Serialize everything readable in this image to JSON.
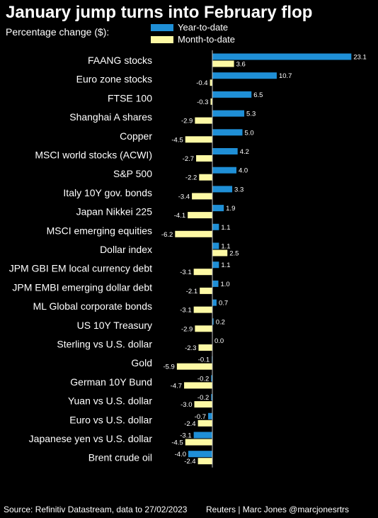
{
  "title": "January jump turns into February flop",
  "subtitle": "Percentage change ($):",
  "colors": {
    "background": "#000000",
    "ytd": "#1f8fd6",
    "mtd": "#fdf9a4",
    "text": "#ffffff"
  },
  "footer": {
    "source": "Source: Refinitiv Datastream, data to 27/02/2023",
    "credit": "Reuters | Marc Jones @marcjonesrtrs"
  },
  "chart_data": {
    "type": "bar",
    "orientation": "horizontal",
    "title": "January jump turns into February flop",
    "subtitle": "Percentage change ($):",
    "legend_position": "top",
    "grid": false,
    "xlim": [
      -7,
      23.1
    ],
    "categories": [
      "FAANG stocks",
      "Euro zone stocks",
      "FTSE 100",
      "Shanghai A shares",
      "Copper",
      "MSCI world stocks (ACWI)",
      "S&P 500",
      "Italy 10Y gov. bonds",
      "Japan Nikkei 225",
      "MSCI emerging equities",
      "Dollar index",
      "JPM GBI EM local currency debt",
      "JPM EMBI emerging dollar debt",
      "ML Global corporate bonds",
      "US 10Y Treasury",
      "Sterling vs U.S. dollar",
      "Gold",
      "German 10Y Bund",
      "Yuan vs U.S. dollar",
      "Euro vs U.S. dollar",
      "Japanese yen vs U.S. dollar",
      "Brent crude oil"
    ],
    "series": [
      {
        "name": "Year-to-date",
        "color": "#1f8fd6",
        "values": [
          23.1,
          10.7,
          6.5,
          5.3,
          5.0,
          4.2,
          4.0,
          3.3,
          1.9,
          1.1,
          1.1,
          1.1,
          1.0,
          0.7,
          0.2,
          0.0,
          -0.1,
          -0.2,
          -0.2,
          -0.7,
          -3.1,
          -4.0
        ],
        "labels": [
          "23.1",
          "10.7",
          "6.5",
          "5.3",
          "5.0",
          "4.2",
          "4.0",
          "3.3",
          "1.9",
          "1.1",
          "1.1",
          "1.1",
          "1.0",
          "0.7",
          "0.2",
          "0.0",
          "-0.1",
          "-0.2",
          "-0.2",
          "-0.7",
          "-3.1",
          "-4.0"
        ]
      },
      {
        "name": "Month-to-date",
        "color": "#fdf9a4",
        "values": [
          3.6,
          -0.4,
          -0.3,
          -2.9,
          -4.5,
          -2.7,
          -2.2,
          -3.4,
          -4.1,
          -6.2,
          2.5,
          -3.1,
          -2.1,
          -3.1,
          -2.9,
          -2.3,
          -5.9,
          -4.7,
          -3.0,
          -2.4,
          -4.5,
          -2.4
        ],
        "labels": [
          "3.6",
          "-0.4",
          "-0.3",
          "-2.9",
          "-4.5",
          "-2.7",
          "-2.2",
          "-3.4",
          "-4.1",
          "-6.2",
          "2.5",
          "-3.1",
          "-2.1",
          "-3.1",
          "-2.9",
          "-2.3",
          "-5.9",
          "-4.7",
          "-3.0",
          "-2.4",
          "-4.5",
          "-2.4"
        ]
      }
    ]
  }
}
